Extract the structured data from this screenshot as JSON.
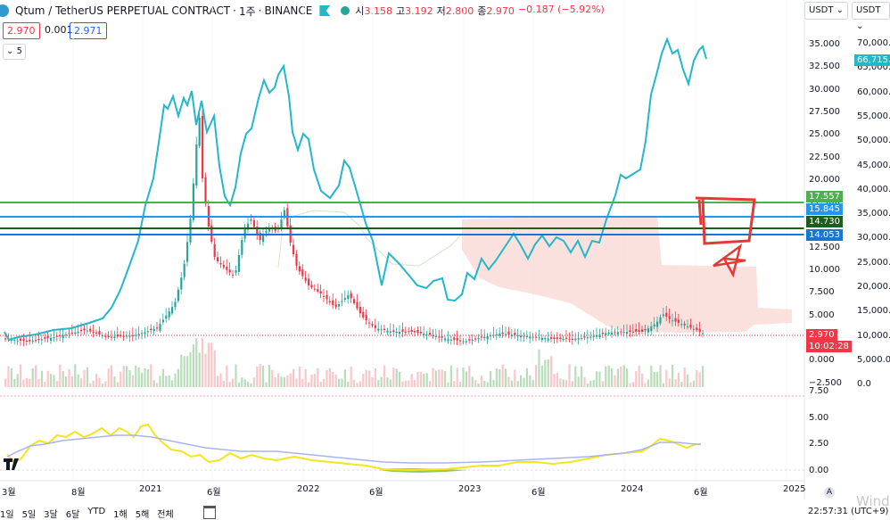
{
  "header": {
    "symbol": "Qtum / TetherUS PERPETUAL CONTRACT",
    "interval": "1주",
    "exchange": "BINANCE",
    "ohlc": {
      "open_label": "시",
      "open": "3.158",
      "high_label": "고",
      "high": "3.192",
      "low_label": "저",
      "low": "2.800",
      "close_label": "종",
      "close": "2.970",
      "change": "−0.187 (−5.92%)"
    },
    "bid": "2.970",
    "spread": "0.001",
    "ask": "2.971",
    "collapse_label": "5"
  },
  "currency_selectors": [
    "USDT",
    "USDT"
  ],
  "left_axis": [
    "35.000",
    "32.500",
    "30.000",
    "27.500",
    "25.000",
    "22.500",
    "20.000",
    "17.500",
    "15.000",
    "12.500",
    "10.000",
    "7.500",
    "5.000",
    "2.500",
    "0.000",
    "−2.500"
  ],
  "right_axis": [
    "70,000.0",
    "65,000.0",
    "60,000.0",
    "55,000.0",
    "50,000.0",
    "45,000.0",
    "40,000.0",
    "35,000.0",
    "30,000.0",
    "25,000.0",
    "20,000.0",
    "15,000.0",
    "10,000.0",
    "5,000.0",
    "0.0"
  ],
  "osc_axis": [
    "7.50",
    "5.00",
    "2.50",
    "0.00"
  ],
  "price_tags": [
    {
      "value": "66,715.5",
      "color": "#22b8c9"
    },
    {
      "value": "17.557",
      "color": "#4caf50"
    },
    {
      "value": "15.845",
      "color": "#2196f3"
    },
    {
      "value": "14.730",
      "color": "#1b5e20"
    },
    {
      "value": "14.053",
      "color": "#1976d2"
    },
    {
      "value": "2.970",
      "color": "#f23645"
    },
    {
      "value": "10:02:28",
      "color": "#f23645"
    }
  ],
  "time_axis": [
    "3월",
    "8월",
    "2021",
    "6월",
    "2022",
    "6월",
    "2023",
    "6월",
    "2024",
    "6월",
    "2025"
  ],
  "time_ranges": [
    "1일",
    "5일",
    "3달",
    "6달",
    "YTD",
    "1해",
    "5해",
    "전체"
  ],
  "clock": "22:57:31 (UTC+9)",
  "axis_badge": "A",
  "watermark": "Wind",
  "colors": {
    "up": "#26a69a",
    "down": "#f23645",
    "btc": "#22b8c9",
    "cloud": "#f9d7d3"
  }
}
